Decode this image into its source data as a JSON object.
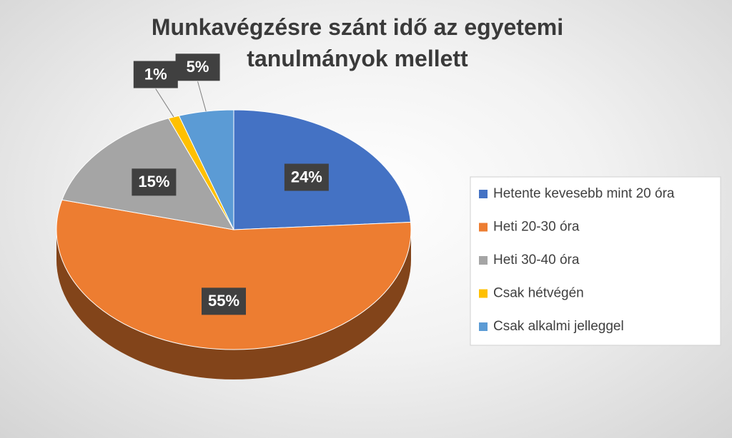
{
  "chart_data": {
    "type": "pie",
    "title": "Munkavégzésre szánt idő az egyetemi tanulmányok mellett",
    "categories": [
      "Hetente kevesebb mint 20 óra",
      "Heti 20-30 óra",
      "Heti 30-40 óra",
      "Csak hétvégén",
      "Csak alkalmi jelleggel"
    ],
    "values": [
      24,
      55,
      15,
      1,
      5
    ],
    "value_labels": [
      "24%",
      "55%",
      "15%",
      "1%",
      "5%"
    ],
    "colors": [
      "#4472c4",
      "#ed7d31",
      "#a5a5a5",
      "#ffc000",
      "#5b9bd5"
    ],
    "legend": "right"
  }
}
